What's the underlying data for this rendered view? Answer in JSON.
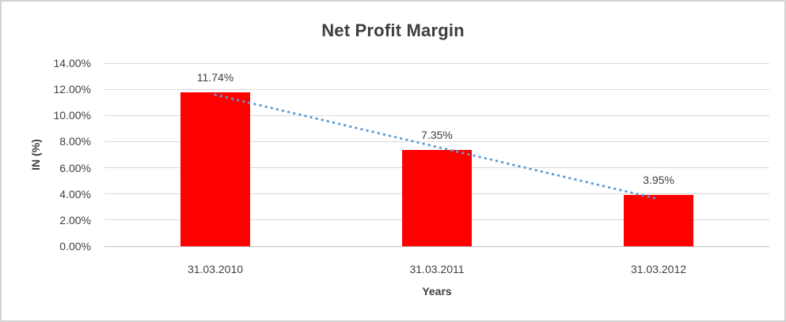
{
  "window": {
    "background_color": "#ffffff",
    "border_color": "#d3d3d3"
  },
  "chart_data": {
    "type": "bar",
    "title": "Net Profit Margin",
    "categories": [
      "31.03.2010",
      "31.03.2011",
      "31.03.2012"
    ],
    "values": [
      11.74,
      7.35,
      3.95
    ],
    "data_labels": [
      "11.74%",
      "7.35%",
      "3.95%"
    ],
    "xlabel": "Years",
    "ylabel": "IN (%)",
    "ylim": [
      0,
      14
    ],
    "ytick_step": 2,
    "ytick_labels": [
      "0.00%",
      "2.00%",
      "4.00%",
      "6.00%",
      "8.00%",
      "10.00%",
      "12.00%",
      "14.00%"
    ],
    "grid": true,
    "legend": "none",
    "bar_color": "#ff0000",
    "gridline_color": "#d9d9d9",
    "axis_line_color": "#bfbfbf",
    "text_color": "#404040",
    "trendline": {
      "style": "dotted",
      "color": "#5b9bd5",
      "start_value": 11.58,
      "end_value": 3.79
    }
  }
}
